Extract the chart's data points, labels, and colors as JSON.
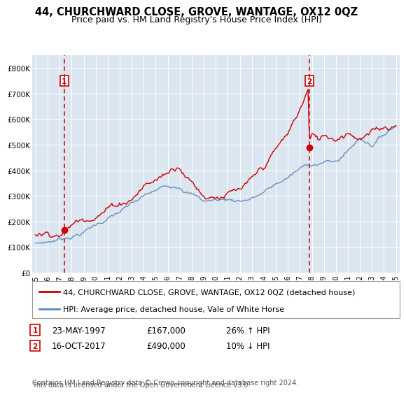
{
  "title": "44, CHURCHWARD CLOSE, GROVE, WANTAGE, OX12 0QZ",
  "subtitle": "Price paid vs. HM Land Registry's House Price Index (HPI)",
  "ylim": [
    0,
    850000
  ],
  "yticks": [
    0,
    100000,
    200000,
    300000,
    400000,
    500000,
    600000,
    700000,
    800000
  ],
  "ytick_labels": [
    "£0",
    "£100K",
    "£200K",
    "£300K",
    "£400K",
    "£500K",
    "£600K",
    "£700K",
    "£800K"
  ],
  "xlim_min": 1994.7,
  "xlim_max": 2025.3,
  "xticks": [
    1995,
    1996,
    1997,
    1998,
    1999,
    2000,
    2001,
    2002,
    2003,
    2004,
    2005,
    2006,
    2007,
    2008,
    2009,
    2010,
    2011,
    2012,
    2013,
    2014,
    2015,
    2016,
    2017,
    2018,
    2019,
    2020,
    2021,
    2022,
    2023,
    2024,
    2025
  ],
  "bg_color": "#dce6f0",
  "red_color": "#cc0000",
  "blue_color": "#5588bb",
  "legend_entry1": "44, CHURCHWARD CLOSE, GROVE, WANTAGE, OX12 0QZ (detached house)",
  "legend_entry2": "HPI: Average price, detached house, Vale of White Horse",
  "point1_year": 1997.39,
  "point1_value": 167000,
  "point2_year": 2017.79,
  "point2_value": 490000,
  "ann1_date": "23-MAY-1997",
  "ann1_price": "£167,000",
  "ann1_hpi": "26% ↑ HPI",
  "ann2_date": "16-OCT-2017",
  "ann2_price": "£490,000",
  "ann2_hpi": "10% ↓ HPI",
  "footer_line1": "Contains HM Land Registry data © Crown copyright and database right 2024.",
  "footer_line2": "This data is licensed under the Open Government Licence v3.0."
}
